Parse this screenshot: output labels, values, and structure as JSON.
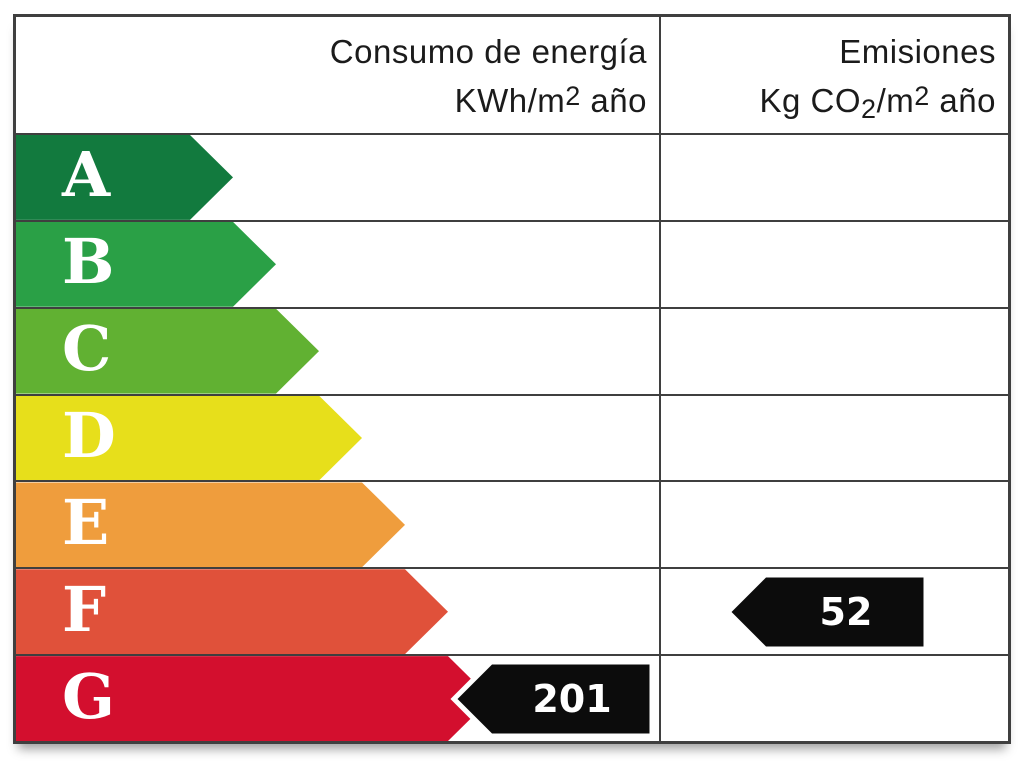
{
  "header": {
    "consumption_line1": "Consumo de energía",
    "consumption_line2_base": "KWh/m",
    "consumption_line2_exp": "2",
    "consumption_line2_tail": " año",
    "emissions_line1": "Emisiones",
    "emissions_line2_base": "Kg CO",
    "emissions_line2_sub": "2",
    "emissions_line2_mid": "/m",
    "emissions_line2_exp": "2",
    "emissions_line2_tail": " año"
  },
  "ratings": [
    {
      "letter": "A",
      "color": "#127a3e",
      "arrow_width": 217
    },
    {
      "letter": "B",
      "color": "#2aa046",
      "arrow_width": 260
    },
    {
      "letter": "C",
      "color": "#61b132",
      "arrow_width": 303
    },
    {
      "letter": "D",
      "color": "#e7df1b",
      "arrow_width": 346
    },
    {
      "letter": "E",
      "color": "#ef9d3d",
      "arrow_width": 389
    },
    {
      "letter": "F",
      "color": "#e0513a",
      "arrow_width": 432
    },
    {
      "letter": "G",
      "color": "#d30f2e",
      "arrow_width": 475
    }
  ],
  "values": {
    "consumption": {
      "value": "201",
      "rating": "G"
    },
    "emissions": {
      "value": "52",
      "rating": "F"
    }
  },
  "colors": {
    "grid": "#3f3f3f",
    "marker_fill": "#0c0c0c",
    "marker_outline": "#ffffff",
    "marker_text": "#ffffff",
    "letter_text": "#ffffff"
  },
  "chart_data": {
    "type": "table",
    "columns": [
      "Consumo de energía KWh/m2 año",
      "Emisiones Kg CO2/m2 año"
    ],
    "scale": [
      "A",
      "B",
      "C",
      "D",
      "E",
      "F",
      "G"
    ],
    "scale_colors": [
      "#127a3e",
      "#2aa046",
      "#61b132",
      "#e7df1b",
      "#ef9d3d",
      "#e0513a",
      "#d30f2e"
    ],
    "consumption_kwh_m2_year": 201,
    "consumption_rating": "G",
    "emissions_kg_co2_m2_year": 52,
    "emissions_rating": "F",
    "legend_position": "none",
    "grid": true
  }
}
